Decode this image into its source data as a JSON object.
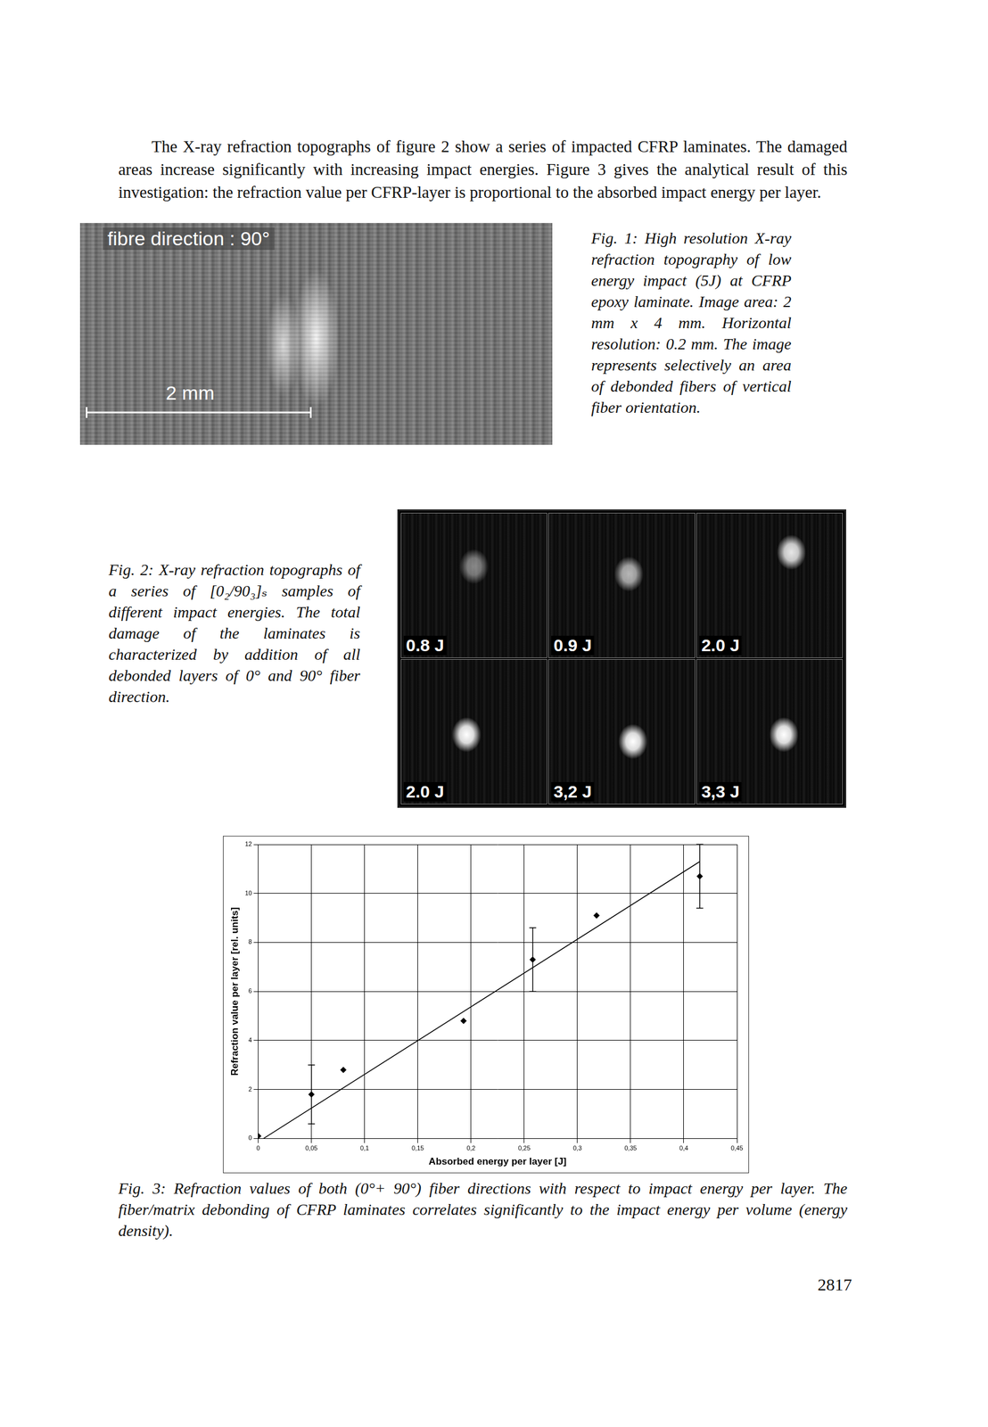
{
  "body_text": "The X-ray refraction topographs of figure 2 show a series of impacted CFRP laminates. The damaged areas increase significantly with increasing impact energies. Figure 3 gives the analytical result of this investigation: the refraction value per CFRP-layer is proportional to the absorbed impact energy per layer.",
  "figure1": {
    "title": "fibre direction : 90°",
    "scale_label": "2 mm",
    "caption": "Fig. 1: High resolution X-ray refraction topography of low energy impact (5J) at CFRP epoxy laminate. Image area: 2 mm x 4 mm. Horizontal resolution: 0.2 mm. The image represents selectively an area of debonded fibers of vertical fiber orientation."
  },
  "figure2": {
    "panels": [
      "0.8 J",
      "0.9 J",
      "2.0 J",
      "2.0 J",
      "3,2 J",
      "3,3 J"
    ],
    "caption": "Fig. 2: X-ray refraction topographs of a series of [0₂/90₃]ₛ samples of different impact energies. The total damage of the laminates is characterized by addition of all debonded layers of 0° and 90° fiber direction."
  },
  "chart_data": {
    "type": "scatter",
    "x_label": "Absorbed energy per layer [J]",
    "y_label": "Refraction value per layer [rel. units]",
    "x": [
      0,
      0.05,
      0.08,
      0.193,
      0.258,
      0.318,
      0.415
    ],
    "values": [
      0.1,
      1.8,
      2.8,
      4.8,
      7.3,
      9.1,
      10.7
    ],
    "y_error": [
      null,
      1.2,
      null,
      null,
      1.3,
      null,
      1.3
    ],
    "color": "#000000",
    "marker": "diamond",
    "fit_line": {
      "x": [
        0.005,
        0.415
      ],
      "values": [
        0,
        11.3
      ],
      "color": "#000000",
      "line_style": "solid"
    },
    "xlim": [
      0,
      0.45
    ],
    "xticks": [
      0,
      {
        "value": 0.05,
        "label": "0,05"
      },
      {
        "value": 0.1,
        "label": "0,1"
      },
      {
        "value": 0.15,
        "label": "0,15"
      },
      {
        "value": 0.2,
        "label": "0,2"
      },
      {
        "value": 0.25,
        "label": "0,25"
      },
      {
        "value": 0.3,
        "label": "0,3"
      },
      {
        "value": 0.35,
        "label": "0,35"
      },
      {
        "value": 0.4,
        "label": "0,4"
      },
      {
        "value": 0.45,
        "label": "0,45"
      }
    ],
    "ylim": [
      0,
      12
    ],
    "yticks": [
      0,
      2,
      4,
      6,
      8,
      10,
      12
    ],
    "grid": true
  },
  "figure3_caption": "Fig. 3: Refraction values of both (0°+ 90°) fiber directions with respect to impact energy per layer. The fiber/matrix debonding of CFRP laminates correlates significantly to the impact energy per volume (energy density).",
  "page_number": "2817"
}
